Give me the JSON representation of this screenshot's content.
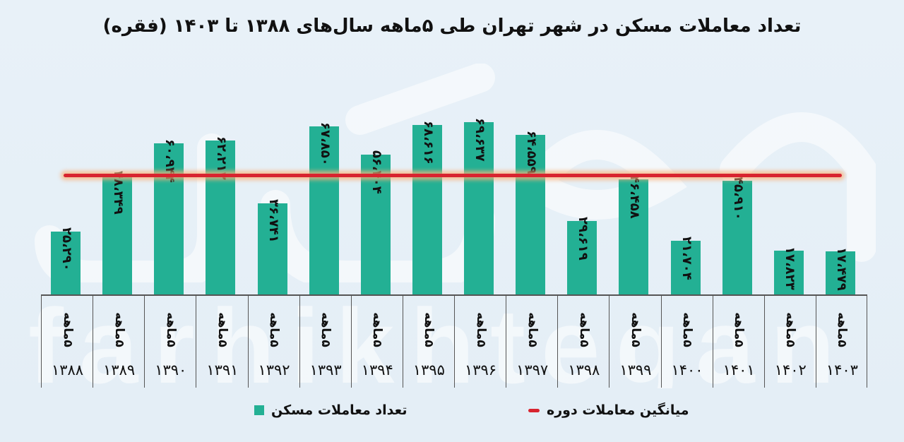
{
  "title": "تعداد معاملات مسکن در شهر تهران طی ۵ماهه سال‌های ۱۳۸۸ تا ۱۴۰۳ (فقره)",
  "watermark": "farhikhtegan",
  "legend": {
    "series_label": "تعداد معاملات مسکن",
    "average_label": "میانگین معاملات دوره"
  },
  "colors": {
    "bar": "#23b094",
    "average_line": "#d8242f",
    "background": "#e6eff7"
  },
  "period_label": "۵ماهه",
  "bars": [
    {
      "year": "۱۳۸۸",
      "label": "۲۵،۲۹۰"
    },
    {
      "year": "۱۳۸۹",
      "label": "۴۸،۳۴۹"
    },
    {
      "year": "۱۳۹۰",
      "label": "۶۰،۹۴۴"
    },
    {
      "year": "۱۳۹۱",
      "label": "۶۲،۲۱۲"
    },
    {
      "year": "۱۳۹۲",
      "label": "۳۶،۷۴۱"
    },
    {
      "year": "۱۳۹۳",
      "label": "۶۷،۸۵۰"
    },
    {
      "year": "۱۳۹۴",
      "label": "۵۶،۴۰۴"
    },
    {
      "year": "۱۳۹۵",
      "label": "۶۸،۶۱۶"
    },
    {
      "year": "۱۳۹۶",
      "label": "۶۹،۶۳۷"
    },
    {
      "year": "۱۳۹۷",
      "label": "۶۴،۵۵۹"
    },
    {
      "year": "۱۳۹۸",
      "label": "۲۹،۶۱۹"
    },
    {
      "year": "۱۳۹۹",
      "label": "۴۶،۴۵۸"
    },
    {
      "year": "۱۴۰۰",
      "label": "۲۱،۷۰۴"
    },
    {
      "year": "۱۴۰۱",
      "label": "۴۵،۹۱۰"
    },
    {
      "year": "۱۴۰۲",
      "label": "۱۷،۸۲۳"
    },
    {
      "year": "۱۴۰۳",
      "label": "۱۷،۴۷۹"
    }
  ],
  "chart_data": {
    "type": "bar",
    "title": "تعداد معاملات مسکن در شهر تهران طی ۵ماهه سال‌های ۱۳۸۸ تا ۱۴۰۳ (فقره)",
    "xlabel": "",
    "ylabel": "",
    "categories": [
      "1388",
      "1389",
      "1390",
      "1391",
      "1392",
      "1393",
      "1394",
      "1395",
      "1396",
      "1397",
      "1398",
      "1399",
      "1400",
      "1401",
      "1402",
      "1403"
    ],
    "category_sublabel": "۵ماهه",
    "series": [
      {
        "name": "تعداد معاملات مسکن",
        "color": "#23b094",
        "values": [
          25290,
          48349,
          60944,
          62212,
          36741,
          67850,
          56404,
          68616,
          69637,
          64559,
          29619,
          46458,
          21704,
          45910,
          17823,
          17479
        ]
      }
    ],
    "reference_lines": [
      {
        "name": "میانگین معاملات دوره",
        "color": "#d8242f",
        "value": 46225,
        "note": "average of period (approx.)"
      }
    ],
    "ylim": [
      0,
      80000
    ],
    "grid": false,
    "legend_position": "bottom",
    "value_labels": "rotated 90°, above bars"
  }
}
